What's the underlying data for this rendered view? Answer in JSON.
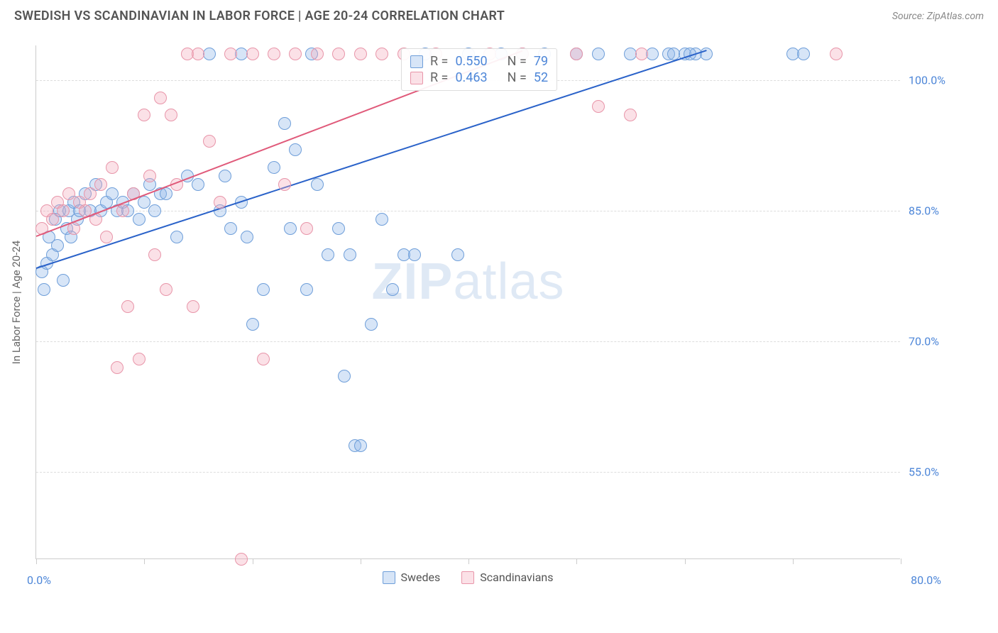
{
  "header": {
    "title": "SWEDISH VS SCANDINAVIAN IN LABOR FORCE | AGE 20-24 CORRELATION CHART",
    "source": "Source: ZipAtlas.com"
  },
  "chart": {
    "type": "scatter",
    "yaxis_title": "In Labor Force | Age 20-24",
    "xlim": [
      0,
      80
    ],
    "ylim": [
      45,
      104
    ],
    "yticks": [
      55,
      70,
      85,
      100
    ],
    "ytick_labels": [
      "55.0%",
      "70.0%",
      "85.0%",
      "100.0%"
    ],
    "xticks": [
      0,
      10,
      20,
      30,
      40,
      50,
      60,
      70,
      80
    ],
    "x_min_label": "0.0%",
    "x_max_label": "80.0%",
    "background_color": "#ffffff",
    "grid_color": "#dddddd",
    "marker_size": 18,
    "watermark_text_a": "ZIP",
    "watermark_text_b": "atlas",
    "series": [
      {
        "name": "Swedes",
        "color_fill": "rgba(141,181,232,0.35)",
        "color_stroke": "#6e9ed9",
        "trend_color": "#2a62c9",
        "stats": {
          "R": "0.550",
          "N": "79"
        },
        "trend": {
          "x1": 0,
          "y1": 78.5,
          "x2": 62,
          "y2": 103.5
        },
        "points": [
          [
            0.5,
            78
          ],
          [
            0.7,
            76
          ],
          [
            1,
            79
          ],
          [
            1.2,
            82
          ],
          [
            1.5,
            80
          ],
          [
            1.8,
            84
          ],
          [
            2,
            81
          ],
          [
            2.2,
            85
          ],
          [
            2.5,
            77
          ],
          [
            2.8,
            83
          ],
          [
            3,
            85
          ],
          [
            3.2,
            82
          ],
          [
            3.5,
            86
          ],
          [
            3.8,
            84
          ],
          [
            4,
            85
          ],
          [
            4.5,
            87
          ],
          [
            5,
            85
          ],
          [
            5.5,
            88
          ],
          [
            6,
            85
          ],
          [
            6.5,
            86
          ],
          [
            7,
            87
          ],
          [
            7.5,
            85
          ],
          [
            8,
            86
          ],
          [
            8.5,
            85
          ],
          [
            9,
            87
          ],
          [
            9.5,
            84
          ],
          [
            10,
            86
          ],
          [
            10.5,
            88
          ],
          [
            11,
            85
          ],
          [
            11.5,
            87
          ],
          [
            12,
            87
          ],
          [
            13,
            82
          ],
          [
            14,
            89
          ],
          [
            15,
            88
          ],
          [
            16,
            103
          ],
          [
            17,
            85
          ],
          [
            17.5,
            89
          ],
          [
            18,
            83
          ],
          [
            19,
            86
          ],
          [
            19.5,
            82
          ],
          [
            20,
            72
          ],
          [
            21,
            76
          ],
          [
            22,
            90
          ],
          [
            23,
            95
          ],
          [
            23.5,
            83
          ],
          [
            24,
            92
          ],
          [
            25,
            76
          ],
          [
            25.5,
            103
          ],
          [
            26,
            88
          ],
          [
            27,
            80
          ],
          [
            28,
            83
          ],
          [
            28.5,
            66
          ],
          [
            29,
            80
          ],
          [
            29.5,
            58
          ],
          [
            30,
            58
          ],
          [
            31,
            72
          ],
          [
            32,
            84
          ],
          [
            33,
            76
          ],
          [
            34,
            80
          ],
          [
            35,
            80
          ],
          [
            36,
            103
          ],
          [
            39,
            80
          ],
          [
            40,
            103
          ],
          [
            43,
            103
          ],
          [
            45,
            103
          ],
          [
            47,
            103
          ],
          [
            50,
            103
          ],
          [
            52,
            103
          ],
          [
            55,
            103
          ],
          [
            57,
            103
          ],
          [
            58.5,
            103
          ],
          [
            59,
            103
          ],
          [
            60,
            103
          ],
          [
            61,
            103
          ],
          [
            62,
            103
          ],
          [
            70,
            103
          ],
          [
            71,
            103
          ],
          [
            60.5,
            103
          ],
          [
            19,
            103
          ]
        ]
      },
      {
        "name": "Scandinavians",
        "color_fill": "rgba(244,170,186,0.35)",
        "color_stroke": "#e895a9",
        "trend_color": "#e05a7a",
        "stats": {
          "R": "0.463",
          "N": "52"
        },
        "trend": {
          "x1": 0,
          "y1": 82.2,
          "x2": 45,
          "y2": 103.5
        },
        "points": [
          [
            0.5,
            83
          ],
          [
            1,
            85
          ],
          [
            1.5,
            84
          ],
          [
            2,
            86
          ],
          [
            2.5,
            85
          ],
          [
            3,
            87
          ],
          [
            3.5,
            83
          ],
          [
            4,
            86
          ],
          [
            4.5,
            85
          ],
          [
            5,
            87
          ],
          [
            5.5,
            84
          ],
          [
            6,
            88
          ],
          [
            6.5,
            82
          ],
          [
            7,
            90
          ],
          [
            7.5,
            67
          ],
          [
            8,
            85
          ],
          [
            8.5,
            74
          ],
          [
            9,
            87
          ],
          [
            9.5,
            68
          ],
          [
            10,
            96
          ],
          [
            10.5,
            89
          ],
          [
            11,
            80
          ],
          [
            11.5,
            98
          ],
          [
            12,
            76
          ],
          [
            12.5,
            96
          ],
          [
            13,
            88
          ],
          [
            14,
            103
          ],
          [
            14.5,
            74
          ],
          [
            15,
            103
          ],
          [
            16,
            93
          ],
          [
            17,
            86
          ],
          [
            18,
            103
          ],
          [
            19,
            45
          ],
          [
            20,
            103
          ],
          [
            21,
            68
          ],
          [
            22,
            103
          ],
          [
            23,
            88
          ],
          [
            24,
            103
          ],
          [
            25,
            83
          ],
          [
            26,
            103
          ],
          [
            28,
            103
          ],
          [
            30,
            103
          ],
          [
            32,
            103
          ],
          [
            34,
            103
          ],
          [
            37,
            103
          ],
          [
            42,
            103
          ],
          [
            45,
            103
          ],
          [
            50,
            103
          ],
          [
            52,
            97
          ],
          [
            55,
            96
          ],
          [
            56,
            103
          ],
          [
            74,
            103
          ]
        ]
      }
    ],
    "legend": {
      "items": [
        {
          "label": "Swedes",
          "fill": "rgba(141,181,232,0.35)",
          "stroke": "#6e9ed9"
        },
        {
          "label": "Scandinavians",
          "fill": "rgba(244,170,186,0.35)",
          "stroke": "#e895a9"
        }
      ]
    },
    "stats_box": {
      "labels": {
        "R": "R =",
        "N": "N ="
      }
    }
  }
}
